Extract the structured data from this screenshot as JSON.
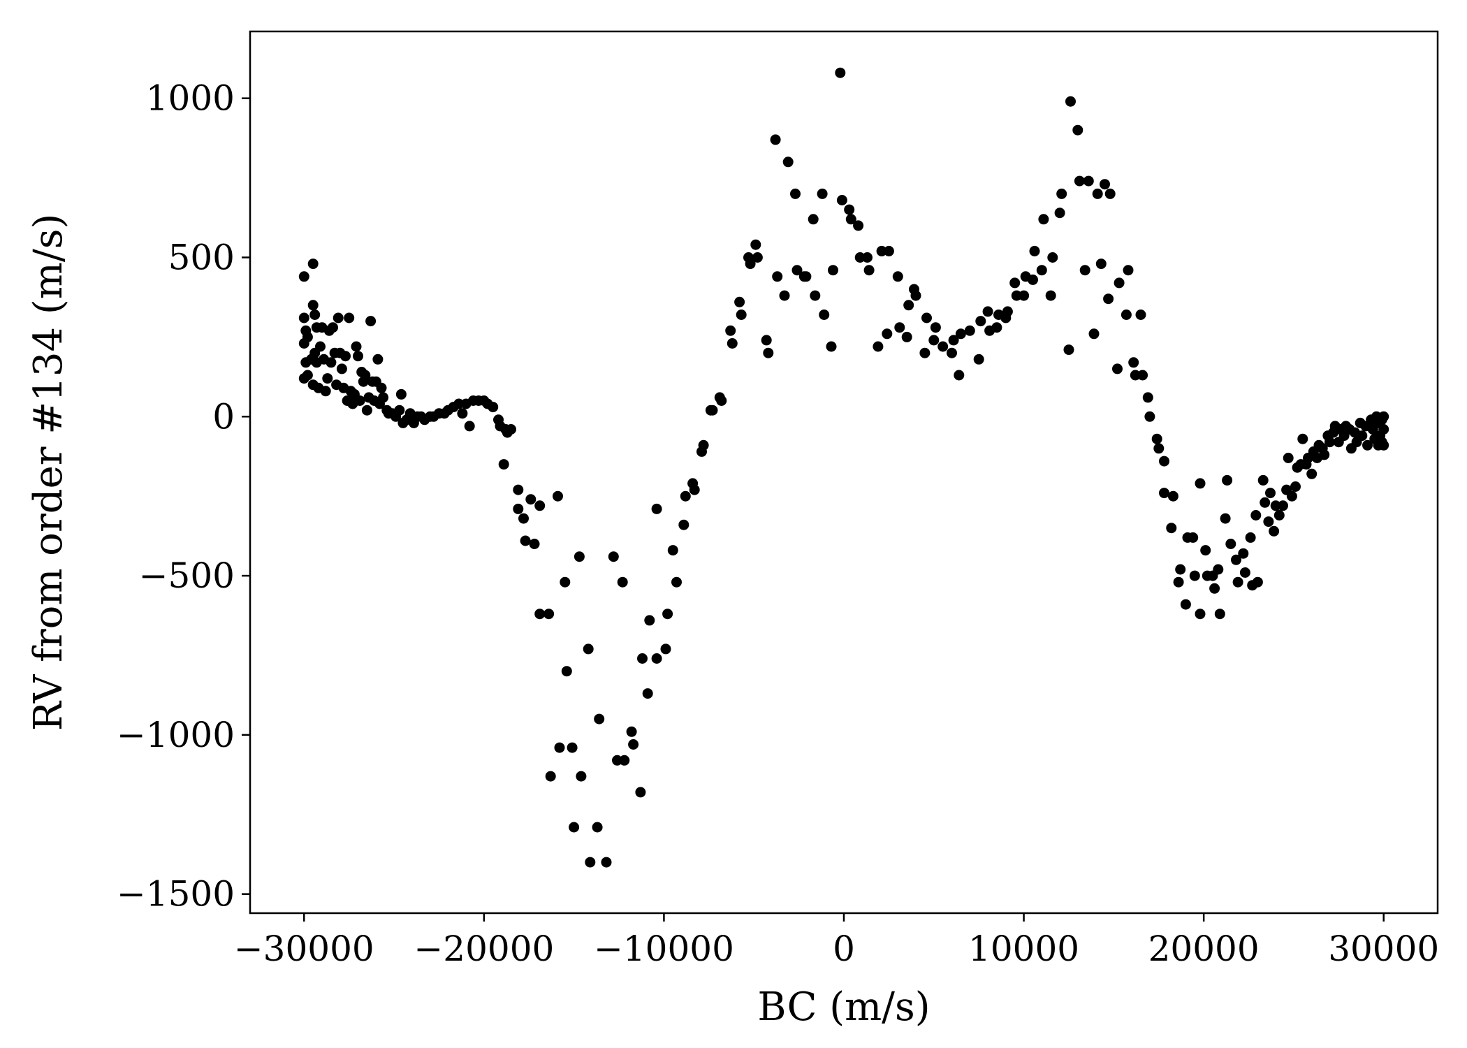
{
  "chart_data": {
    "type": "scatter",
    "title": "",
    "xlabel": "BC (m/s)",
    "ylabel": "RV from order #134 (m/s)",
    "xlim": [
      -33000,
      33000
    ],
    "ylim": [
      -1560,
      1210
    ],
    "xticks": [
      -30000,
      -20000,
      -10000,
      0,
      10000,
      20000,
      30000
    ],
    "yticks": [
      -1500,
      -1000,
      -500,
      0,
      500,
      1000
    ],
    "grid": false,
    "legend": "none",
    "marker_color": "#000000",
    "series": [
      {
        "points": [
          [
            -30000,
            440
          ],
          [
            -30000,
            310
          ],
          [
            -29900,
            270
          ],
          [
            -30000,
            230
          ],
          [
            -29800,
            250
          ],
          [
            -29900,
            170
          ],
          [
            -30000,
            120
          ],
          [
            -29800,
            130
          ],
          [
            -29600,
            180
          ],
          [
            -29500,
            480
          ],
          [
            -29500,
            350
          ],
          [
            -29400,
            320
          ],
          [
            -29300,
            280
          ],
          [
            -29400,
            200
          ],
          [
            -29300,
            170
          ],
          [
            -29500,
            100
          ],
          [
            -29200,
            90
          ],
          [
            -29100,
            220
          ],
          [
            -29000,
            280
          ],
          [
            -28900,
            180
          ],
          [
            -28800,
            80
          ],
          [
            -28700,
            120
          ],
          [
            -28600,
            270
          ],
          [
            -28500,
            170
          ],
          [
            -28400,
            280
          ],
          [
            -28300,
            200
          ],
          [
            -28200,
            100
          ],
          [
            -28100,
            310
          ],
          [
            -28000,
            200
          ],
          [
            -27900,
            150
          ],
          [
            -27800,
            90
          ],
          [
            -27700,
            190
          ],
          [
            -27600,
            50
          ],
          [
            -27500,
            310
          ],
          [
            -27400,
            80
          ],
          [
            -27300,
            40
          ],
          [
            -27200,
            70
          ],
          [
            -27100,
            220
          ],
          [
            -27000,
            190
          ],
          [
            -26900,
            50
          ],
          [
            -26800,
            140
          ],
          [
            -26700,
            110
          ],
          [
            -26600,
            130
          ],
          [
            -26500,
            20
          ],
          [
            -26400,
            60
          ],
          [
            -26300,
            300
          ],
          [
            -26200,
            110
          ],
          [
            -26100,
            50
          ],
          [
            -26000,
            110
          ],
          [
            -25900,
            180
          ],
          [
            -25800,
            40
          ],
          [
            -25700,
            90
          ],
          [
            -25600,
            60
          ],
          [
            -25400,
            20
          ],
          [
            -25300,
            10
          ],
          [
            -25100,
            10
          ],
          [
            -24900,
            0
          ],
          [
            -24700,
            20
          ],
          [
            -24600,
            70
          ],
          [
            -24500,
            -20
          ],
          [
            -24300,
            -10
          ],
          [
            -24100,
            10
          ],
          [
            -23900,
            -20
          ],
          [
            -23700,
            0
          ],
          [
            -23500,
            0
          ],
          [
            -23300,
            -10
          ],
          [
            -23000,
            0
          ],
          [
            -22800,
            0
          ],
          [
            -22500,
            10
          ],
          [
            -22200,
            10
          ],
          [
            -22000,
            20
          ],
          [
            -21700,
            30
          ],
          [
            -21400,
            40
          ],
          [
            -21200,
            10
          ],
          [
            -21000,
            40
          ],
          [
            -20800,
            -30
          ],
          [
            -20600,
            50
          ],
          [
            -20300,
            50
          ],
          [
            -20000,
            50
          ],
          [
            -19800,
            40
          ],
          [
            -19500,
            30
          ],
          [
            -19200,
            -10
          ],
          [
            -19100,
            -30
          ],
          [
            -18800,
            -40
          ],
          [
            -18700,
            -50
          ],
          [
            -18500,
            -40
          ],
          [
            -18900,
            -150
          ],
          [
            -18100,
            -230
          ],
          [
            -18100,
            -290
          ],
          [
            -17800,
            -320
          ],
          [
            -17700,
            -390
          ],
          [
            -17400,
            -260
          ],
          [
            -17200,
            -400
          ],
          [
            -16900,
            -280
          ],
          [
            -16900,
            -620
          ],
          [
            -16400,
            -620
          ],
          [
            -16300,
            -1130
          ],
          [
            -15900,
            -250
          ],
          [
            -15800,
            -1040
          ],
          [
            -15500,
            -520
          ],
          [
            -15400,
            -800
          ],
          [
            -15100,
            -1040
          ],
          [
            -15000,
            -1290
          ],
          [
            -14700,
            -440
          ],
          [
            -14600,
            -1130
          ],
          [
            -14200,
            -730
          ],
          [
            -14100,
            -1400
          ],
          [
            -13700,
            -1290
          ],
          [
            -13600,
            -950
          ],
          [
            -13200,
            -1400
          ],
          [
            -12800,
            -440
          ],
          [
            -12600,
            -1080
          ],
          [
            -12300,
            -520
          ],
          [
            -12200,
            -1080
          ],
          [
            -11800,
            -990
          ],
          [
            -11700,
            -1030
          ],
          [
            -11300,
            -1180
          ],
          [
            -11200,
            -760
          ],
          [
            -10900,
            -870
          ],
          [
            -10800,
            -640
          ],
          [
            -10400,
            -290
          ],
          [
            -10400,
            -760
          ],
          [
            -9900,
            -730
          ],
          [
            -9800,
            -620
          ],
          [
            -9500,
            -420
          ],
          [
            -9300,
            -520
          ],
          [
            -8900,
            -340
          ],
          [
            -8800,
            -250
          ],
          [
            -8400,
            -210
          ],
          [
            -8300,
            -230
          ],
          [
            -7900,
            -110
          ],
          [
            -7800,
            -90
          ],
          [
            -7400,
            20
          ],
          [
            -7300,
            20
          ],
          [
            -6900,
            60
          ],
          [
            -6800,
            50
          ],
          [
            -6300,
            270
          ],
          [
            -6200,
            230
          ],
          [
            -5800,
            360
          ],
          [
            -5700,
            320
          ],
          [
            -5300,
            500
          ],
          [
            -5200,
            480
          ],
          [
            -4900,
            540
          ],
          [
            -4800,
            500
          ],
          [
            -4300,
            240
          ],
          [
            -4200,
            200
          ],
          [
            -3800,
            870
          ],
          [
            -3700,
            440
          ],
          [
            -3300,
            380
          ],
          [
            -3100,
            800
          ],
          [
            -2700,
            700
          ],
          [
            -2600,
            460
          ],
          [
            -2200,
            440
          ],
          [
            -2100,
            440
          ],
          [
            -1700,
            620
          ],
          [
            -1600,
            380
          ],
          [
            -1200,
            700
          ],
          [
            -1100,
            320
          ],
          [
            -700,
            220
          ],
          [
            -600,
            460
          ],
          [
            -200,
            1080
          ],
          [
            -100,
            680
          ],
          [
            300,
            650
          ],
          [
            400,
            620
          ],
          [
            800,
            600
          ],
          [
            900,
            500
          ],
          [
            1300,
            500
          ],
          [
            1400,
            460
          ],
          [
            1900,
            220
          ],
          [
            2100,
            520
          ],
          [
            2400,
            260
          ],
          [
            2500,
            520
          ],
          [
            3000,
            440
          ],
          [
            3100,
            280
          ],
          [
            3500,
            250
          ],
          [
            3600,
            350
          ],
          [
            3900,
            400
          ],
          [
            4000,
            380
          ],
          [
            4500,
            200
          ],
          [
            4600,
            310
          ],
          [
            5000,
            240
          ],
          [
            5100,
            280
          ],
          [
            5500,
            220
          ],
          [
            6000,
            200
          ],
          [
            6100,
            240
          ],
          [
            6400,
            130
          ],
          [
            6500,
            260
          ],
          [
            7000,
            270
          ],
          [
            7500,
            180
          ],
          [
            7600,
            300
          ],
          [
            8000,
            330
          ],
          [
            8100,
            270
          ],
          [
            8500,
            280
          ],
          [
            8600,
            320
          ],
          [
            9000,
            310
          ],
          [
            9100,
            330
          ],
          [
            9500,
            420
          ],
          [
            9600,
            380
          ],
          [
            10000,
            380
          ],
          [
            10100,
            440
          ],
          [
            10500,
            430
          ],
          [
            10600,
            520
          ],
          [
            11000,
            460
          ],
          [
            11100,
            620
          ],
          [
            11500,
            380
          ],
          [
            11600,
            500
          ],
          [
            12000,
            640
          ],
          [
            12100,
            700
          ],
          [
            12500,
            210
          ],
          [
            12600,
            990
          ],
          [
            13000,
            900
          ],
          [
            13100,
            740
          ],
          [
            13400,
            460
          ],
          [
            13600,
            740
          ],
          [
            13900,
            260
          ],
          [
            14100,
            700
          ],
          [
            14300,
            480
          ],
          [
            14500,
            730
          ],
          [
            14700,
            370
          ],
          [
            14800,
            700
          ],
          [
            15200,
            150
          ],
          [
            15300,
            420
          ],
          [
            15700,
            320
          ],
          [
            15800,
            460
          ],
          [
            16100,
            170
          ],
          [
            16200,
            130
          ],
          [
            16500,
            320
          ],
          [
            16600,
            130
          ],
          [
            16900,
            60
          ],
          [
            17000,
            0
          ],
          [
            17400,
            -70
          ],
          [
            17500,
            -100
          ],
          [
            17800,
            -140
          ],
          [
            17800,
            -240
          ],
          [
            18200,
            -350
          ],
          [
            18300,
            -250
          ],
          [
            18600,
            -520
          ],
          [
            18700,
            -480
          ],
          [
            19000,
            -590
          ],
          [
            19100,
            -380
          ],
          [
            19400,
            -380
          ],
          [
            19500,
            -500
          ],
          [
            19800,
            -620
          ],
          [
            19800,
            -210
          ],
          [
            20100,
            -420
          ],
          [
            20200,
            -500
          ],
          [
            20500,
            -500
          ],
          [
            20600,
            -540
          ],
          [
            20800,
            -480
          ],
          [
            20900,
            -620
          ],
          [
            21200,
            -320
          ],
          [
            21300,
            -200
          ],
          [
            21500,
            -400
          ],
          [
            21800,
            -450
          ],
          [
            21900,
            -520
          ],
          [
            22200,
            -430
          ],
          [
            22300,
            -490
          ],
          [
            22600,
            -380
          ],
          [
            22700,
            -530
          ],
          [
            22900,
            -310
          ],
          [
            23000,
            -520
          ],
          [
            23300,
            -200
          ],
          [
            23400,
            -270
          ],
          [
            23600,
            -330
          ],
          [
            23700,
            -240
          ],
          [
            23900,
            -360
          ],
          [
            24000,
            -280
          ],
          [
            24200,
            -310
          ],
          [
            24400,
            -280
          ],
          [
            24600,
            -230
          ],
          [
            24700,
            -130
          ],
          [
            24900,
            -250
          ],
          [
            25100,
            -220
          ],
          [
            25200,
            -160
          ],
          [
            25400,
            -150
          ],
          [
            25500,
            -70
          ],
          [
            25700,
            -150
          ],
          [
            25800,
            -130
          ],
          [
            26000,
            -180
          ],
          [
            26100,
            -110
          ],
          [
            26300,
            -130
          ],
          [
            26400,
            -90
          ],
          [
            26600,
            -100
          ],
          [
            26700,
            -120
          ],
          [
            26900,
            -60
          ],
          [
            27000,
            -80
          ],
          [
            27200,
            -50
          ],
          [
            27300,
            -30
          ],
          [
            27500,
            -80
          ],
          [
            27600,
            -40
          ],
          [
            27800,
            -60
          ],
          [
            27900,
            -30
          ],
          [
            28100,
            -40
          ],
          [
            28200,
            -100
          ],
          [
            28400,
            -50
          ],
          [
            28500,
            -80
          ],
          [
            28700,
            -20
          ],
          [
            28800,
            -60
          ],
          [
            29000,
            -30
          ],
          [
            29100,
            -90
          ],
          [
            29300,
            -10
          ],
          [
            29400,
            -40
          ],
          [
            29500,
            -70
          ],
          [
            29600,
            0
          ],
          [
            29700,
            -20
          ],
          [
            29800,
            -60
          ],
          [
            29900,
            -10
          ],
          [
            30000,
            0
          ],
          [
            30000,
            -40
          ],
          [
            29900,
            -80
          ],
          [
            30000,
            -90
          ],
          [
            29700,
            -90
          ]
        ]
      }
    ]
  }
}
